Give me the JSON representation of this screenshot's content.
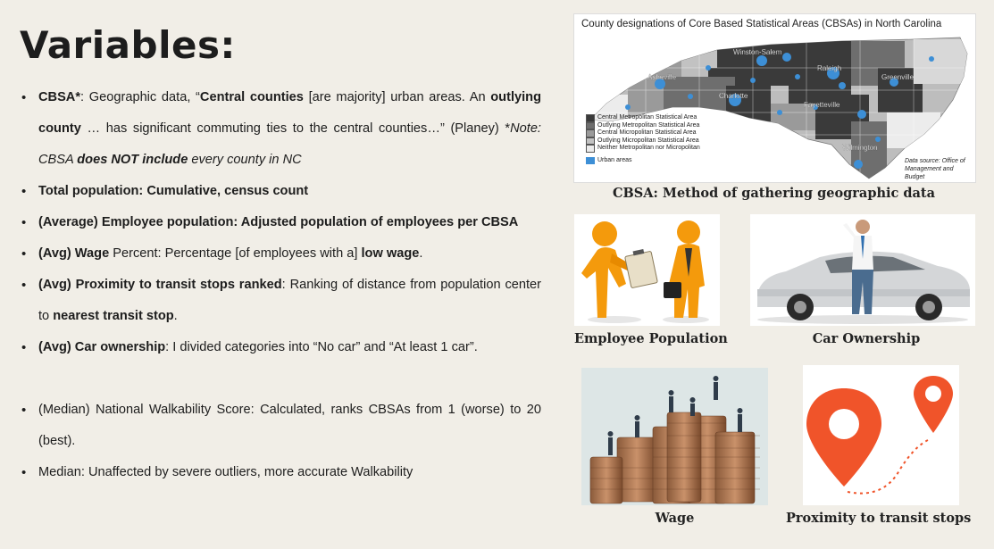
{
  "title": "Variables:",
  "bullets": [
    {
      "segments": [
        {
          "t": "CBSA*",
          "s": "b"
        },
        {
          "t": ": Geographic data, “",
          "s": ""
        },
        {
          "t": "Central counties",
          "s": "b"
        },
        {
          "t": " [are majority] urban areas. An ",
          "s": ""
        },
        {
          "t": "outlying county",
          "s": "b"
        },
        {
          "t": " … has significant commuting ties to the central counties…” (Planey) *",
          "s": ""
        },
        {
          "t": "Note: CBSA ",
          "s": "i"
        },
        {
          "t": "does NOT include",
          "s": "bi"
        },
        {
          "t": " every county in NC",
          "s": "i"
        }
      ]
    },
    {
      "segments": [
        {
          "t": "Total population: Cumulative, census count",
          "s": "b"
        }
      ]
    },
    {
      "segments": [
        {
          "t": "(Average) Employee population: Adjusted population of employees per CBSA",
          "s": "b"
        }
      ]
    },
    {
      "segments": [
        {
          "t": "(Avg) Wage",
          "s": "b"
        },
        {
          "t": " Percent: Percentage [of employees with a] ",
          "s": ""
        },
        {
          "t": "low wage",
          "s": "b"
        },
        {
          "t": ".",
          "s": ""
        }
      ]
    },
    {
      "segments": [
        {
          "t": "(Avg) Proximity to transit stops ranked",
          "s": "b"
        },
        {
          "t": ": Ranking of distance from population center to ",
          "s": ""
        },
        {
          "t": "nearest transit stop",
          "s": "b"
        },
        {
          "t": ".",
          "s": ""
        }
      ]
    },
    {
      "segments": [
        {
          "t": "(Avg) Car ownership",
          "s": "b"
        },
        {
          "t": ": I divided categories into “No car” and “At least 1 car”.",
          "s": ""
        }
      ]
    },
    {
      "gap": true,
      "segments": [
        {
          "t": "(Median) National Walkability Score: Calculated, ranks CBSAs from 1 (worse) to 20 (best).",
          "s": ""
        }
      ]
    },
    {
      "segments": [
        {
          "t": "Median: Unaffected by severe outliers, more accurate Walkability",
          "s": ""
        }
      ]
    }
  ],
  "map": {
    "title": "County designations of Core Based Statistical Areas (CBSAs) in North Carolina",
    "cities": [
      "Winston-Salem",
      "Asheville",
      "Raleigh",
      "Greenville",
      "Charlotte",
      "Fayetteville",
      "Wilmington"
    ],
    "legend": [
      {
        "label": "Central Metropolitan Statistical Area",
        "color": "#3a3a3a"
      },
      {
        "label": "Outlying Metropolitan Statistical Area",
        "color": "#6e6e6e"
      },
      {
        "label": "Central Micropolitan Statistical Area",
        "color": "#9a9a9a"
      },
      {
        "label": "Outlying Micropolitan Statistical Area",
        "color": "#c2c2c2"
      },
      {
        "label": "Neither Metropolitan nor Micropolitan",
        "color": "#ececec"
      }
    ],
    "urban_label": "Urban areas",
    "urban_color": "#3d8fd6",
    "source": "Data source: Office of Management and Budget"
  },
  "captions": {
    "map": "CBSA: Method of gathering geographic data",
    "employee": "Employee Population",
    "car": "Car Ownership",
    "wage": "Wage",
    "transit": "Proximity to transit stops"
  },
  "colors": {
    "pin": "#f0542a",
    "figure": "#f49a0c",
    "background": "#f1eee7"
  }
}
